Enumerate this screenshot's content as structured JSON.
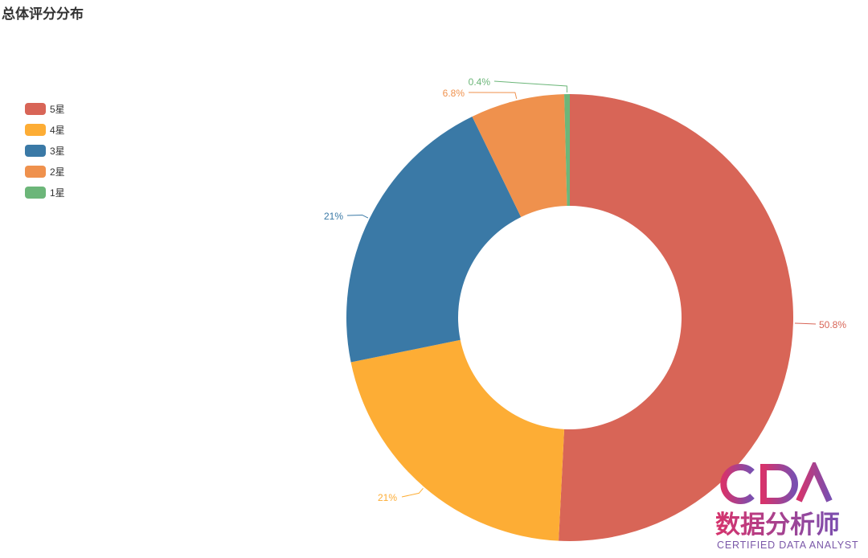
{
  "title": "总体评分分布",
  "chart_data": {
    "type": "pie",
    "variant": "donut",
    "title": "总体评分分布",
    "categories": [
      "5星",
      "4星",
      "3星",
      "2星",
      "1星"
    ],
    "values": [
      50.8,
      21,
      21,
      6.8,
      0.4
    ],
    "labels": [
      "50.8%",
      "21%",
      "21%",
      "6.8%",
      "0.4%"
    ],
    "colors": [
      "#d86557",
      "#fdad35",
      "#3a79a6",
      "#ef914d",
      "#6cb679"
    ],
    "legend": "top-left"
  },
  "watermark": {
    "logo": "CDA",
    "name": "数据分析师",
    "tagline": "CERTIFIED DATA ANALYST"
  }
}
